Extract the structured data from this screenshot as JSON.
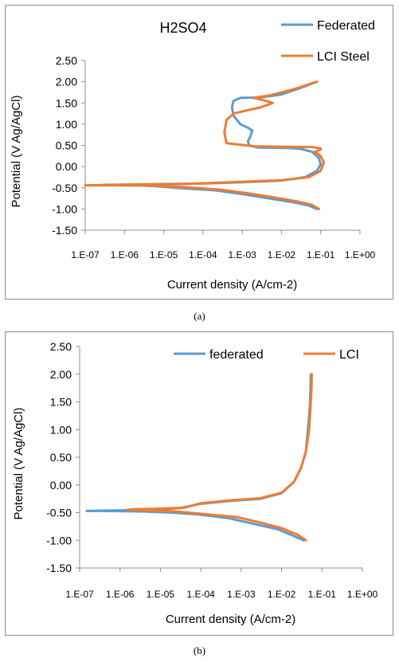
{
  "chart_data": [
    {
      "type": "line",
      "title": "H2SO4",
      "xlabel": "Current density (A/cm-2)",
      "ylabel": "Potential (V Ag/AgCl)",
      "xscale": "log",
      "xlim": [
        1e-07,
        1
      ],
      "ylim": [
        -1.5,
        2.5
      ],
      "x_tick_labels": [
        "1.E-07",
        "1.E-06",
        "1.E-05",
        "1.E-04",
        "1.E-03",
        "1.E-02",
        "1.E-01",
        "1.E+00"
      ],
      "y_tick_labels": [
        "2.50",
        "2.00",
        "1.50",
        "1.00",
        "0.50",
        "0.00",
        "-0.50",
        "-1.00",
        "-1.50"
      ],
      "legend_position": "top-right",
      "series": [
        {
          "name": "Federated",
          "color": "#5b9bd5",
          "x": [
            0.08,
            0.05,
            0.02,
            0.005,
            0.001,
            0.0002,
            2e-05,
            6e-06,
            2e-06,
            3e-07,
            2e-06,
            0.0001,
            0.001,
            0.01,
            0.04,
            0.08,
            0.1,
            0.09,
            0.06,
            0.03,
            0.015,
            0.0025,
            0.0015,
            0.0014,
            0.0016,
            0.0018,
            0.0015,
            0.0009,
            0.0006,
            0.00055,
            0.0006,
            0.0009,
            0.003,
            0.01,
            0.03,
            0.08
          ],
          "y": [
            -1.0,
            -0.92,
            -0.84,
            -0.75,
            -0.65,
            -0.56,
            -0.5,
            -0.46,
            -0.44,
            -0.43,
            -0.42,
            -0.4,
            -0.37,
            -0.33,
            -0.25,
            -0.1,
            0.05,
            0.2,
            0.35,
            0.42,
            0.44,
            0.45,
            0.5,
            0.6,
            0.7,
            0.85,
            0.9,
            1.0,
            1.2,
            1.4,
            1.55,
            1.62,
            1.63,
            1.7,
            1.85,
            2.0
          ]
        },
        {
          "name": "LCI Steel",
          "color": "#ed7d31",
          "x": [
            0.09,
            0.06,
            0.025,
            0.006,
            0.0012,
            0.00025,
            3e-05,
            6e-06,
            5e-07,
            1e-07,
            6e-07,
            3e-05,
            0.0005,
            0.01,
            0.05,
            0.1,
            0.12,
            0.1,
            0.07,
            0.1,
            0.1,
            0.06,
            0.01,
            0.002,
            0.0004,
            0.00035,
            0.0004,
            0.0006,
            0.001,
            0.003,
            0.006,
            0.004,
            0.002,
            0.005,
            0.02,
            0.08
          ],
          "y": [
            -1.0,
            -0.9,
            -0.82,
            -0.72,
            -0.62,
            -0.54,
            -0.48,
            -0.45,
            -0.44,
            -0.44,
            -0.43,
            -0.41,
            -0.37,
            -0.32,
            -0.25,
            -0.1,
            0.1,
            0.25,
            0.35,
            0.4,
            0.43,
            0.46,
            0.47,
            0.48,
            0.55,
            0.8,
            1.1,
            1.25,
            1.3,
            1.4,
            1.5,
            1.55,
            1.62,
            1.68,
            1.82,
            2.0
          ]
        }
      ]
    },
    {
      "type": "line",
      "title": "",
      "xlabel": "Current density (A/cm-2)",
      "ylabel": "Potential (V Ag/AgCl)",
      "xscale": "log",
      "xlim": [
        1e-07,
        1
      ],
      "ylim": [
        -1.5,
        2.5
      ],
      "x_tick_labels": [
        "1.E-07",
        "1.E-06",
        "1.E-05",
        "1.E-04",
        "1.E-03",
        "1.E-02",
        "1.E-01",
        "1.E+00"
      ],
      "y_tick_labels": [
        "2.50",
        "2.00",
        "1.50",
        "1.00",
        "0.50",
        "0.00",
        "-0.50",
        "-1.00",
        "-1.50"
      ],
      "legend_position": "top-right",
      "series": [
        {
          "name": "federated",
          "color": "#5b9bd5",
          "x": [
            0.035,
            0.02,
            0.008,
            0.002,
            0.0005,
            8e-05,
            2e-05,
            4e-06,
            4e-07,
            1.5e-07,
            8e-07,
            6e-06,
            3e-05,
            0.0001,
            0.0005,
            0.003,
            0.01,
            0.02,
            0.03,
            0.04,
            0.045,
            0.05,
            0.052,
            0.053
          ],
          "y": [
            -1.0,
            -0.92,
            -0.8,
            -0.7,
            -0.6,
            -0.53,
            -0.5,
            -0.48,
            -0.47,
            -0.47,
            -0.46,
            -0.45,
            -0.42,
            -0.34,
            -0.29,
            -0.25,
            -0.15,
            0.05,
            0.3,
            0.6,
            1.0,
            1.4,
            1.75,
            2.0
          ]
        },
        {
          "name": "LCI",
          "color": "#ed7d31",
          "x": [
            0.04,
            0.025,
            0.01,
            0.003,
            0.0008,
            0.0001,
            2.5e-05,
            6e-06,
            1.8e-06,
            1.5e-06,
            2e-06,
            8e-06,
            4e-05,
            0.0001,
            0.0005,
            0.003,
            0.01,
            0.02,
            0.03,
            0.04,
            0.048,
            0.052,
            0.055,
            0.056
          ],
          "y": [
            -1.0,
            -0.9,
            -0.78,
            -0.68,
            -0.58,
            -0.52,
            -0.48,
            -0.46,
            -0.45,
            -0.45,
            -0.44,
            -0.43,
            -0.41,
            -0.33,
            -0.28,
            -0.24,
            -0.14,
            0.05,
            0.3,
            0.6,
            1.0,
            1.4,
            1.75,
            2.0
          ]
        }
      ]
    }
  ],
  "captions": [
    "(a)",
    "(b)"
  ]
}
